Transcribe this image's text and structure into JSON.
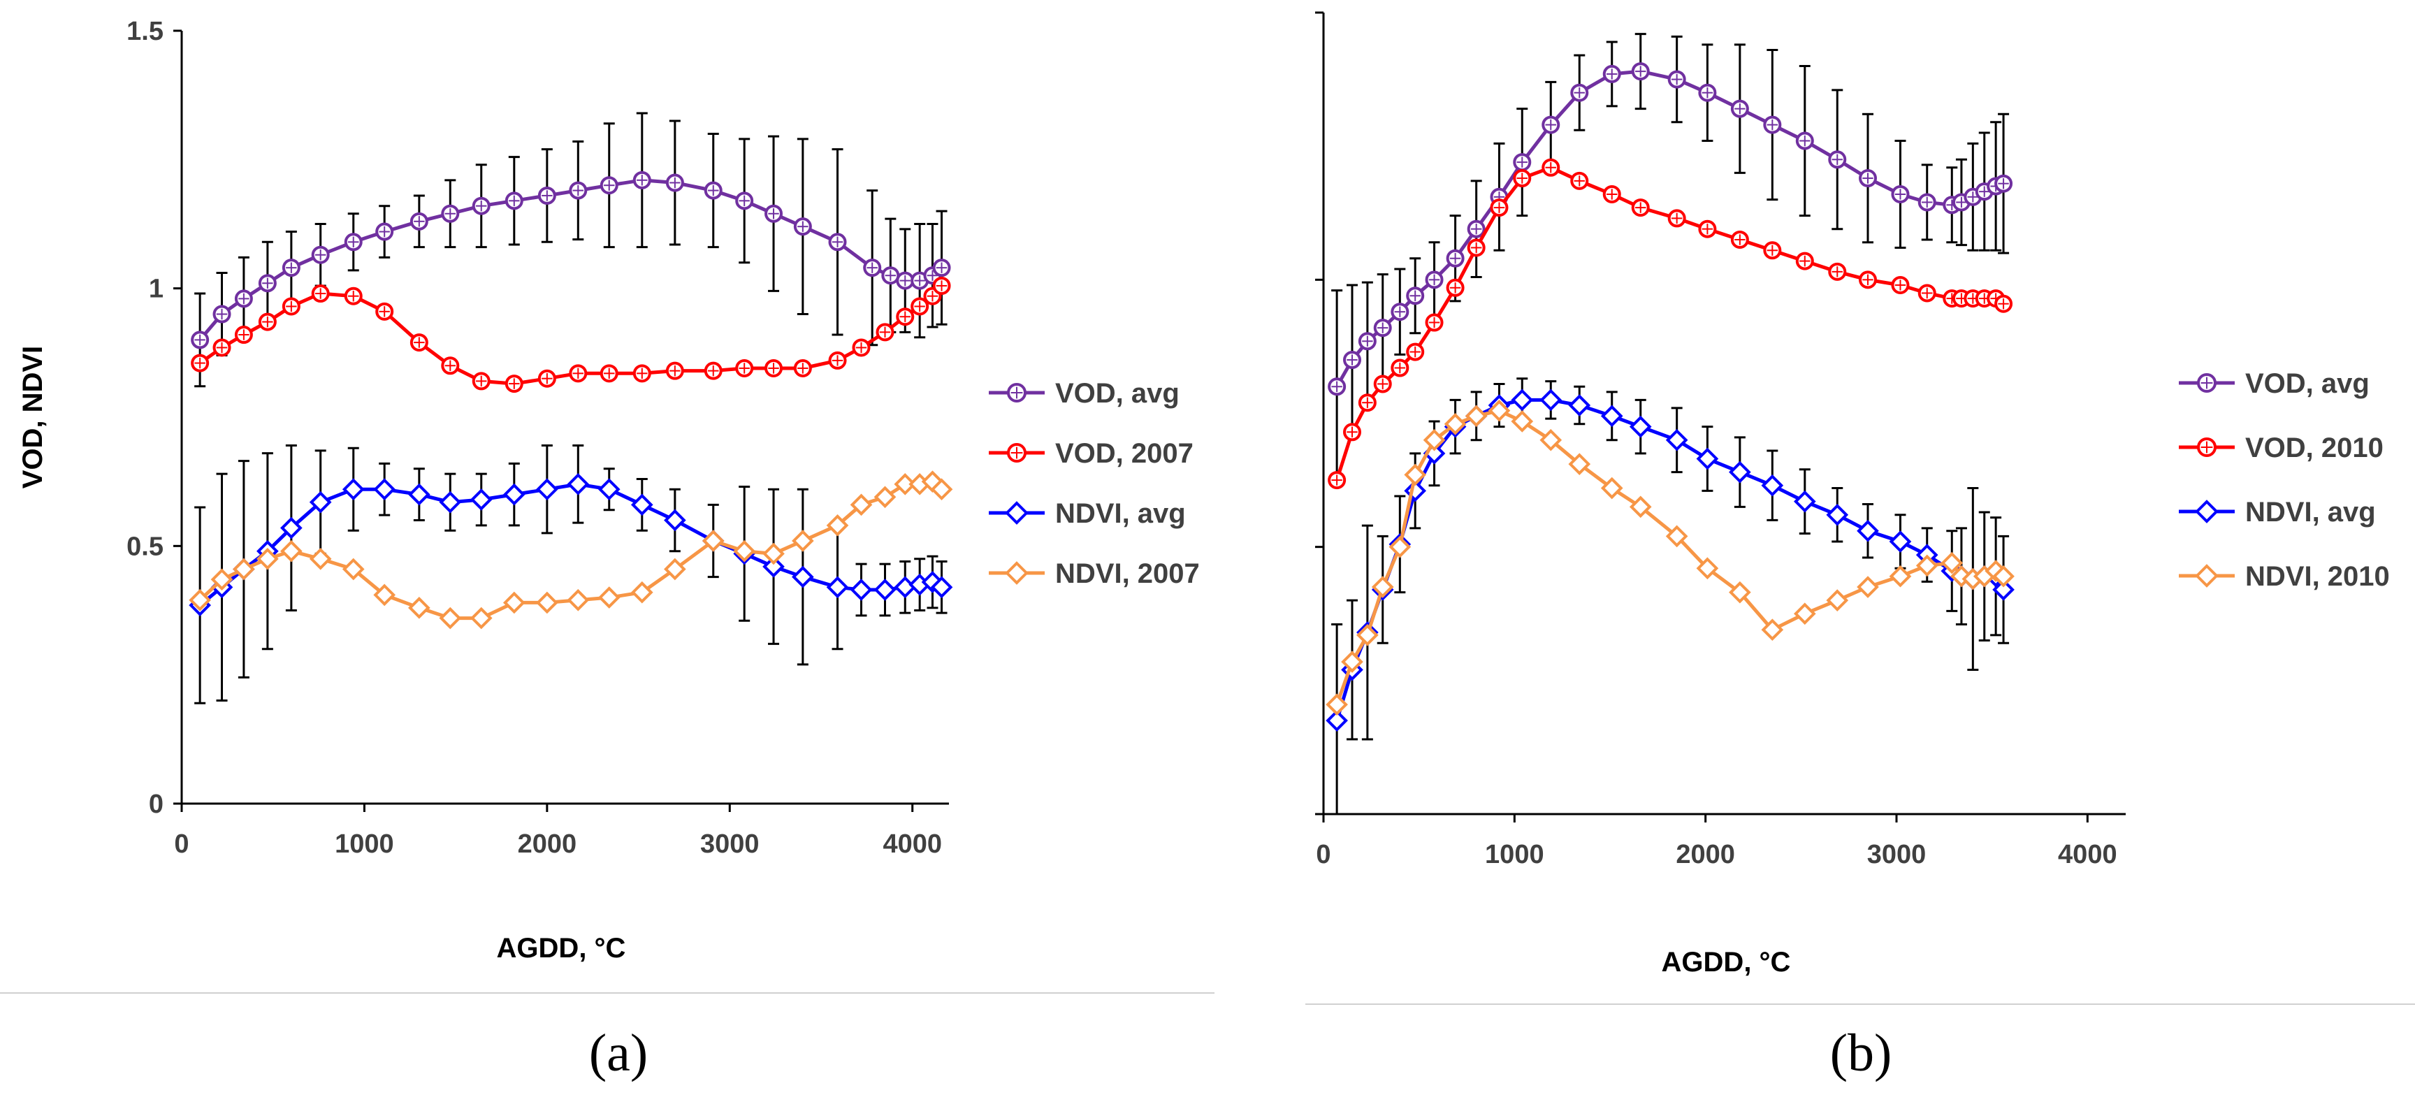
{
  "chart_data": [
    {
      "panel_label": "(a)",
      "type": "line",
      "xlabel": "AGDD, °C",
      "ylabel": "VOD, NDVI",
      "xlim": [
        0,
        4200
      ],
      "ylim": [
        0,
        1.5
      ],
      "xticks": [
        "0",
        "1000",
        "2000",
        "3000",
        "4000"
      ],
      "yticks": [
        "0",
        "0.5",
        "1",
        "1.5"
      ],
      "legend_position": "right",
      "series": [
        {
          "name": "VOD, avg",
          "color": "#7030A0",
          "marker": "circle",
          "x": [
            100,
            220,
            340,
            470,
            600,
            760,
            940,
            1110,
            1300,
            1470,
            1640,
            1820,
            2000,
            2170,
            2340,
            2520,
            2700,
            2910,
            3080,
            3240,
            3400,
            3590,
            3780,
            3880,
            3960,
            4040,
            4110,
            4160
          ],
          "y": [
            0.9,
            0.95,
            0.98,
            1.01,
            1.04,
            1.065,
            1.09,
            1.11,
            1.13,
            1.145,
            1.16,
            1.17,
            1.18,
            1.19,
            1.2,
            1.21,
            1.205,
            1.19,
            1.17,
            1.145,
            1.12,
            1.09,
            1.04,
            1.025,
            1.015,
            1.015,
            1.025,
            1.04
          ],
          "err": [
            0.09,
            0.08,
            0.08,
            0.08,
            0.07,
            0.06,
            0.055,
            0.05,
            0.05,
            0.065,
            0.08,
            0.085,
            0.09,
            0.095,
            0.12,
            0.13,
            0.12,
            0.11,
            0.12,
            0.15,
            0.17,
            0.18,
            0.15,
            0.11,
            0.1,
            0.11,
            0.1,
            0.11
          ]
        },
        {
          "name": "VOD, 2007",
          "color": "#FF0000",
          "marker": "circle",
          "x": [
            100,
            220,
            340,
            470,
            600,
            760,
            940,
            1110,
            1300,
            1470,
            1640,
            1820,
            2000,
            2170,
            2340,
            2520,
            2700,
            2910,
            3080,
            3240,
            3400,
            3590,
            3720,
            3850,
            3960,
            4040,
            4110,
            4160
          ],
          "y": [
            0.855,
            0.885,
            0.91,
            0.935,
            0.965,
            0.99,
            0.985,
            0.955,
            0.895,
            0.85,
            0.82,
            0.815,
            0.825,
            0.835,
            0.835,
            0.835,
            0.84,
            0.84,
            0.845,
            0.845,
            0.845,
            0.86,
            0.885,
            0.915,
            0.945,
            0.965,
            0.985,
            1.005
          ]
        },
        {
          "name": "NDVI, avg",
          "color": "#0000FF",
          "marker": "diamond",
          "x": [
            100,
            220,
            340,
            470,
            600,
            760,
            940,
            1110,
            1300,
            1470,
            1640,
            1820,
            2000,
            2170,
            2340,
            2520,
            2700,
            2910,
            3080,
            3240,
            3400,
            3590,
            3720,
            3850,
            3960,
            4040,
            4110,
            4160
          ],
          "y": [
            0.385,
            0.42,
            0.455,
            0.49,
            0.535,
            0.585,
            0.61,
            0.61,
            0.6,
            0.585,
            0.59,
            0.6,
            0.61,
            0.62,
            0.61,
            0.58,
            0.55,
            0.51,
            0.485,
            0.46,
            0.44,
            0.42,
            0.415,
            0.415,
            0.42,
            0.425,
            0.43,
            0.42
          ],
          "err": [
            0.19,
            0.22,
            0.21,
            0.19,
            0.16,
            0.1,
            0.08,
            0.05,
            0.05,
            0.055,
            0.05,
            0.06,
            0.085,
            0.075,
            0.04,
            0.05,
            0.06,
            0.07,
            0.13,
            0.15,
            0.17,
            0.12,
            0.05,
            0.05,
            0.05,
            0.05,
            0.05,
            0.05
          ]
        },
        {
          "name": "NDVI, 2007",
          "color": "#F79646",
          "marker": "diamond",
          "x": [
            100,
            220,
            340,
            470,
            600,
            760,
            940,
            1110,
            1300,
            1470,
            1640,
            1820,
            2000,
            2170,
            2340,
            2520,
            2700,
            2910,
            3080,
            3240,
            3400,
            3590,
            3720,
            3850,
            3960,
            4040,
            4110,
            4160
          ],
          "y": [
            0.395,
            0.435,
            0.455,
            0.475,
            0.49,
            0.475,
            0.455,
            0.405,
            0.38,
            0.36,
            0.36,
            0.39,
            0.39,
            0.395,
            0.4,
            0.41,
            0.455,
            0.51,
            0.49,
            0.485,
            0.51,
            0.54,
            0.58,
            0.595,
            0.62,
            0.62,
            0.625,
            0.61
          ]
        }
      ]
    },
    {
      "panel_label": "(b)",
      "type": "line",
      "xlabel": "AGDD, °C",
      "ylabel": "",
      "xlim": [
        0,
        4200
      ],
      "ylim": [
        0,
        1.5
      ],
      "xticks": [
        "0",
        "1000",
        "2000",
        "3000",
        "4000"
      ],
      "yticks": [
        "",
        "",
        "",
        ""
      ],
      "legend_position": "right",
      "series": [
        {
          "name": "VOD, avg",
          "color": "#7030A0",
          "marker": "circle",
          "x": [
            70,
            150,
            230,
            310,
            400,
            480,
            580,
            690,
            800,
            920,
            1040,
            1190,
            1340,
            1510,
            1660,
            1850,
            2010,
            2180,
            2350,
            2520,
            2690,
            2850,
            3020,
            3160,
            3290,
            3340,
            3400,
            3460,
            3520,
            3560
          ],
          "y": [
            0.8,
            0.85,
            0.885,
            0.91,
            0.94,
            0.97,
            1.0,
            1.04,
            1.095,
            1.155,
            1.22,
            1.29,
            1.35,
            1.385,
            1.39,
            1.375,
            1.35,
            1.32,
            1.29,
            1.26,
            1.225,
            1.19,
            1.16,
            1.145,
            1.14,
            1.145,
            1.155,
            1.165,
            1.175,
            1.18
          ],
          "err": [
            0.18,
            0.14,
            0.11,
            0.1,
            0.08,
            0.07,
            0.07,
            0.08,
            0.09,
            0.1,
            0.1,
            0.08,
            0.07,
            0.06,
            0.07,
            0.08,
            0.09,
            0.12,
            0.14,
            0.14,
            0.13,
            0.12,
            0.1,
            0.07,
            0.07,
            0.08,
            0.1,
            0.11,
            0.12,
            0.13
          ]
        },
        {
          "name": "VOD, 2010",
          "color": "#FF0000",
          "marker": "circle",
          "x": [
            70,
            150,
            230,
            310,
            400,
            480,
            580,
            690,
            800,
            920,
            1040,
            1190,
            1340,
            1510,
            1660,
            1850,
            2010,
            2180,
            2350,
            2520,
            2690,
            2850,
            3020,
            3160,
            3290,
            3340,
            3400,
            3460,
            3520,
            3560
          ],
          "y": [
            0.625,
            0.715,
            0.77,
            0.805,
            0.835,
            0.865,
            0.92,
            0.985,
            1.06,
            1.135,
            1.19,
            1.21,
            1.185,
            1.16,
            1.135,
            1.115,
            1.095,
            1.075,
            1.055,
            1.035,
            1.015,
            1.0,
            0.99,
            0.975,
            0.965,
            0.965,
            0.965,
            0.965,
            0.965,
            0.955
          ]
        },
        {
          "name": "NDVI, avg",
          "color": "#0000FF",
          "marker": "diamond",
          "x": [
            70,
            150,
            230,
            310,
            400,
            480,
            580,
            690,
            800,
            920,
            1040,
            1190,
            1340,
            1510,
            1660,
            1850,
            2010,
            2180,
            2350,
            2520,
            2690,
            2850,
            3020,
            3160,
            3290,
            3340,
            3400,
            3460,
            3520,
            3560
          ],
          "y": [
            0.175,
            0.27,
            0.34,
            0.42,
            0.505,
            0.605,
            0.675,
            0.725,
            0.745,
            0.765,
            0.775,
            0.775,
            0.765,
            0.745,
            0.725,
            0.7,
            0.665,
            0.64,
            0.615,
            0.585,
            0.56,
            0.53,
            0.51,
            0.485,
            0.455,
            0.445,
            0.44,
            0.445,
            0.445,
            0.42
          ],
          "err": [
            0.18,
            0.13,
            0.2,
            0.1,
            0.09,
            0.07,
            0.06,
            0.05,
            0.045,
            0.04,
            0.04,
            0.035,
            0.035,
            0.045,
            0.05,
            0.06,
            0.06,
            0.065,
            0.065,
            0.06,
            0.05,
            0.05,
            0.05,
            0.05,
            0.075,
            0.09,
            0.17,
            0.12,
            0.11,
            0.1
          ]
        },
        {
          "name": "NDVI, 2010",
          "color": "#F79646",
          "marker": "diamond",
          "x": [
            70,
            150,
            230,
            310,
            400,
            480,
            580,
            690,
            800,
            920,
            1040,
            1190,
            1340,
            1510,
            1660,
            1850,
            2010,
            2180,
            2350,
            2520,
            2690,
            2850,
            3020,
            3160,
            3290,
            3340,
            3400,
            3460,
            3520,
            3560
          ],
          "y": [
            0.205,
            0.285,
            0.335,
            0.425,
            0.5,
            0.635,
            0.7,
            0.73,
            0.745,
            0.755,
            0.735,
            0.7,
            0.655,
            0.61,
            0.575,
            0.52,
            0.46,
            0.415,
            0.345,
            0.375,
            0.4,
            0.425,
            0.445,
            0.465,
            0.47,
            0.445,
            0.44,
            0.445,
            0.455,
            0.445
          ]
        }
      ]
    }
  ]
}
